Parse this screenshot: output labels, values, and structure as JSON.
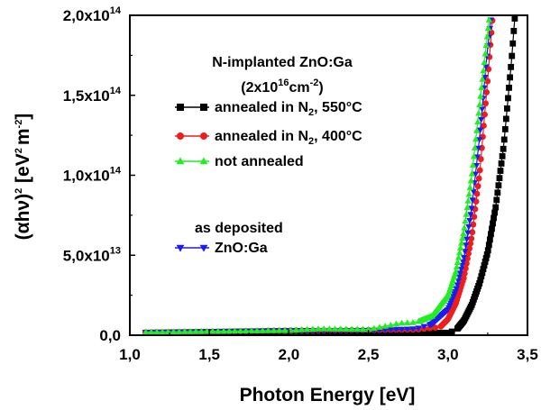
{
  "chart_data": {
    "type": "scatter",
    "xlabel": "Photon Energy [eV]",
    "ylabel": {
      "prefix": "(αhν)",
      "exp": "2",
      "unit_a": " [eV",
      "unit_a_exp": "2",
      "unit_b": "m",
      "unit_b_exp": "-2",
      "close": "]"
    },
    "xlim": [
      1.0,
      3.5
    ],
    "ylim": [
      0,
      200000000000000.0
    ],
    "xticks": [
      {
        "value": 1.0,
        "label": "1,0"
      },
      {
        "value": 1.5,
        "label": "1,5"
      },
      {
        "value": 2.0,
        "label": "2,0"
      },
      {
        "value": 2.5,
        "label": "2,5"
      },
      {
        "value": 3.0,
        "label": "3,0"
      },
      {
        "value": 3.5,
        "label": "3,5"
      }
    ],
    "yticks": [
      {
        "value": 0,
        "mant": "0,0",
        "exp": ""
      },
      {
        "value": 50000000000000.0,
        "mant": "5,0x10",
        "exp": "13"
      },
      {
        "value": 100000000000000.0,
        "mant": "1,0x10",
        "exp": "14"
      },
      {
        "value": 150000000000000.0,
        "mant": "1,5x10",
        "exp": "14"
      },
      {
        "value": 200000000000000.0,
        "mant": "2,0x10",
        "exp": "14"
      }
    ],
    "legend": {
      "title_line1": "N-implanted ZnO:Ga",
      "title_line2": {
        "pre": "(2x10",
        "sup": "16",
        "mid": "cm",
        "sup2": "-2",
        "post": ")"
      },
      "group2_title": "as deposited"
    },
    "series": [
      {
        "name": "annealed in N2, 550°C",
        "label": {
          "pre": "annealed in N",
          "sub": "2",
          "post": ", 550°C"
        },
        "color": "#000000",
        "marker": "square",
        "edge": 3.08,
        "x_end": 3.42,
        "x_step": 0.006,
        "points": [
          [
            1.1,
            1500000000000.0
          ],
          [
            1.5,
            2000000000000.0
          ],
          [
            2.0,
            2600000000000.0
          ],
          [
            2.5,
            2400000000000.0
          ],
          [
            2.9,
            1600000000000.0
          ],
          [
            3.0,
            1500000000000.0
          ],
          [
            3.05,
            3000000000000.0
          ],
          [
            3.1,
            9000000000000.0
          ],
          [
            3.15,
            19000000000000.0
          ],
          [
            3.2,
            33000000000000.0
          ],
          [
            3.25,
            52000000000000.0
          ],
          [
            3.3,
            80000000000000.0
          ],
          [
            3.35,
            118000000000000.0
          ],
          [
            3.4,
            172000000000000.0
          ],
          [
            3.42,
            198000000000000.0
          ]
        ]
      },
      {
        "name": "annealed in N2, 400°C",
        "label": {
          "pre": "annealed in N",
          "sub": "2",
          "post": ", 400°C"
        },
        "color": "#ee1c1c",
        "marker": "circle",
        "edge": 2.98,
        "x_end": 3.28,
        "x_step": 0.006,
        "points": [
          [
            1.1,
            1800000000000.0
          ],
          [
            1.5,
            2200000000000.0
          ],
          [
            2.0,
            3000000000000.0
          ],
          [
            2.5,
            3200000000000.0
          ],
          [
            2.8,
            3500000000000.0
          ],
          [
            2.95,
            5000000000000.0
          ],
          [
            3.0,
            10000000000000.0
          ],
          [
            3.05,
            20000000000000.0
          ],
          [
            3.1,
            36000000000000.0
          ],
          [
            3.15,
            62000000000000.0
          ],
          [
            3.2,
            102000000000000.0
          ],
          [
            3.25,
            160000000000000.0
          ],
          [
            3.28,
            198000000000000.0
          ]
        ]
      },
      {
        "name": "not annealed",
        "label": {
          "pre": "not annealed",
          "sub": "",
          "post": ""
        },
        "color": "#22ee22",
        "marker": "triangle-up",
        "edge": 2.85,
        "x_end": 3.26,
        "x_step": 0.006,
        "points": [
          [
            1.1,
            1900000000000.0
          ],
          [
            1.5,
            2400000000000.0
          ],
          [
            2.0,
            3000000000000.0
          ],
          [
            2.2,
            4000000000000.0
          ],
          [
            2.5,
            3600000000000.0
          ],
          [
            2.7,
            7500000000000.0
          ],
          [
            2.8,
            8000000000000.0
          ],
          [
            2.9,
            12000000000000.0
          ],
          [
            3.0,
            25000000000000.0
          ],
          [
            3.05,
            40000000000000.0
          ],
          [
            3.1,
            65000000000000.0
          ],
          [
            3.15,
            100000000000000.0
          ],
          [
            3.2,
            145000000000000.0
          ],
          [
            3.26,
            198000000000000.0
          ]
        ]
      },
      {
        "name": "ZnO:Ga",
        "label": {
          "pre": "ZnO:Ga",
          "sub": "",
          "post": ""
        },
        "color": "#1c1ced",
        "marker": "triangle-down",
        "edge": 2.92,
        "x_end": 3.27,
        "x_step": 0.006,
        "points": [
          [
            1.1,
            1700000000000.0
          ],
          [
            1.5,
            2200000000000.0
          ],
          [
            2.0,
            2800000000000.0
          ],
          [
            2.5,
            3000000000000.0
          ],
          [
            2.8,
            4000000000000.0
          ],
          [
            2.9,
            7000000000000.0
          ],
          [
            3.0,
            16000000000000.0
          ],
          [
            3.05,
            28000000000000.0
          ],
          [
            3.1,
            48000000000000.0
          ],
          [
            3.15,
            80000000000000.0
          ],
          [
            3.2,
            125000000000000.0
          ],
          [
            3.25,
            180000000000000.0
          ],
          [
            3.27,
            198000000000000.0
          ]
        ]
      }
    ]
  }
}
